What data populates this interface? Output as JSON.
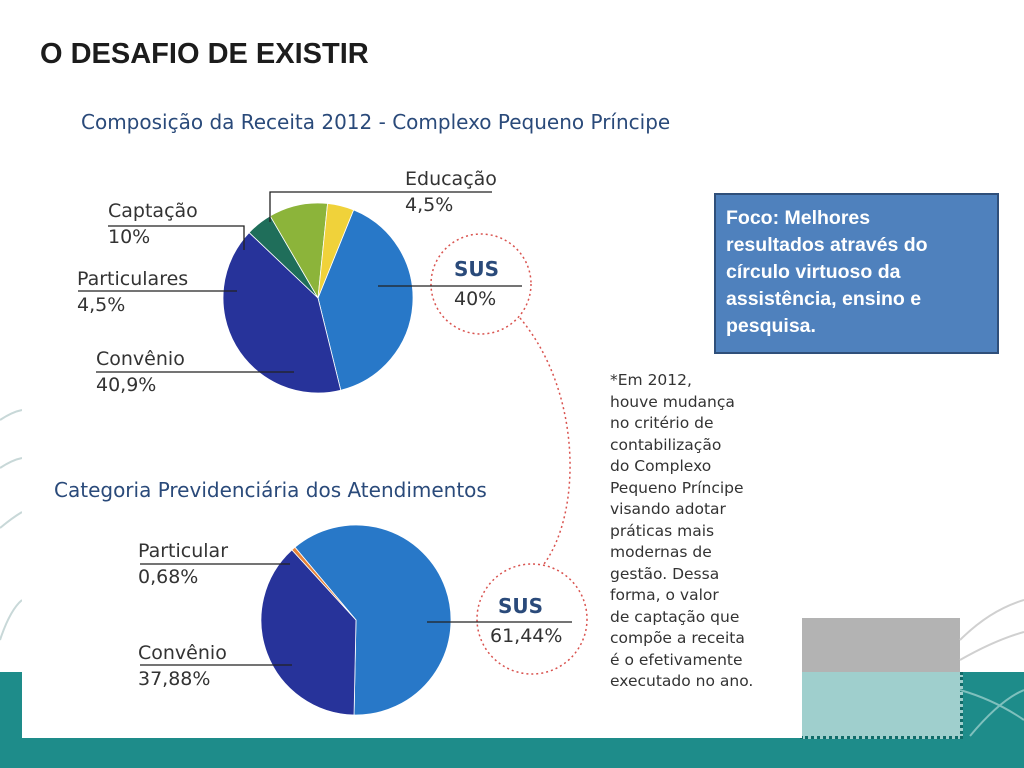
{
  "slide": {
    "title": "O DESAFIO DE EXISTIR"
  },
  "focus_box": {
    "lines": [
      "Foco: Melhores",
      "resultados através do",
      "círculo virtuoso da",
      "assistência, ensino e",
      "pesquisa."
    ]
  },
  "note": {
    "lines": [
      "*Em 2012,",
      "houve mudança",
      "no critério de",
      "contabilização",
      "do Complexo",
      "Pequeno Príncipe",
      "visando adotar",
      "práticas mais",
      "modernas de",
      "gestão. Dessa",
      "forma, o valor",
      "de captação que",
      "compõe a receita",
      "é o efetivamente",
      "executado no ano."
    ]
  },
  "colors": {
    "sus": "#2878c8",
    "convenio": "#27339a",
    "particulares": "#1f6e5a",
    "captacao": "#8cb43a",
    "educacao": "#f0d23a",
    "particular": "#e8843a",
    "callout_ring": "#d9534f",
    "teal_band": "#1e8c8a"
  },
  "chart_data": [
    {
      "type": "pie",
      "title": "Composição da Receita 2012 - Complexo Pequeno Príncipe",
      "slices": [
        {
          "name": "SUS",
          "value": 40,
          "label": "40%",
          "color": "#2878c8"
        },
        {
          "name": "Convênio",
          "value": 40.9,
          "label": "40,9%",
          "color": "#27339a"
        },
        {
          "name": "Particulares",
          "value": 4.5,
          "label": "4,5%",
          "color": "#1f6e5a"
        },
        {
          "name": "Captação",
          "value": 10,
          "label": "10%",
          "color": "#8cb43a"
        },
        {
          "name": "Educação",
          "value": 4.5,
          "label": "4,5%",
          "color": "#f0d23a"
        }
      ]
    },
    {
      "type": "pie",
      "title": "Categoria Previdenciária dos Atendimentos",
      "slices": [
        {
          "name": "SUS",
          "value": 61.44,
          "label": "61,44%",
          "color": "#2878c8"
        },
        {
          "name": "Convênio",
          "value": 37.88,
          "label": "37,88%",
          "color": "#27339a"
        },
        {
          "name": "Particular",
          "value": 0.68,
          "label": "0,68%",
          "color": "#e8843a"
        }
      ]
    }
  ]
}
